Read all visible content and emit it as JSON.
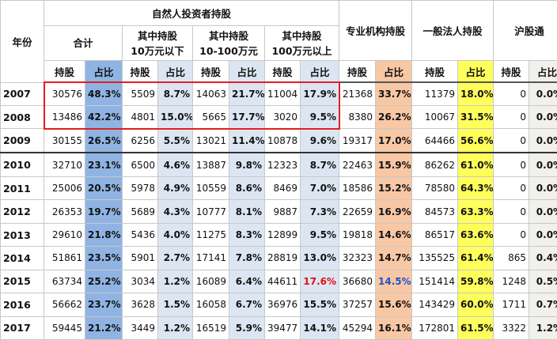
{
  "table": {
    "header": {
      "year": "年份",
      "groups": [
        "自然人投资者持股",
        "专业机构持股",
        "一般法人持股",
        "沪股通"
      ],
      "subgroups": [
        "合计",
        "其中持股\n10万元以下",
        "其中持股\n10-100万元",
        "其中持股\n100万元以上"
      ],
      "columns": [
        "持股",
        "占比",
        "持股",
        "占比",
        "持股",
        "占比",
        "持股",
        "占比",
        "持股",
        "占比",
        "持股",
        "占比",
        "持股",
        "占比"
      ]
    },
    "rows": [
      {
        "year": "2007",
        "cells": [
          "30576",
          "48.3%",
          "5509",
          "8.7%",
          "14063",
          "21.7%",
          "11004",
          "17.9%",
          "21368",
          "33.7%",
          "11379",
          "18.0%",
          "0",
          "0.0%"
        ]
      },
      {
        "year": "2008",
        "cells": [
          "13486",
          "42.2%",
          "4801",
          "15.0%",
          "5665",
          "17.7%",
          "3020",
          "9.5%",
          "8380",
          "26.2%",
          "10067",
          "31.5%",
          "0",
          "0.0%"
        ]
      },
      {
        "year": "2009",
        "cells": [
          "30155",
          "26.5%",
          "6256",
          "5.5%",
          "13021",
          "11.4%",
          "10878",
          "9.6%",
          "19317",
          "17.0%",
          "64466",
          "56.6%",
          "0",
          "0.0%"
        ]
      },
      {
        "year": "2010",
        "cells": [
          "32710",
          "23.1%",
          "6500",
          "4.6%",
          "13887",
          "9.8%",
          "12323",
          "8.7%",
          "22463",
          "15.9%",
          "86262",
          "61.0%",
          "0",
          "0.0%"
        ]
      },
      {
        "year": "2011",
        "cells": [
          "25006",
          "20.5%",
          "5978",
          "4.9%",
          "10559",
          "8.6%",
          "8469",
          "7.0%",
          "18586",
          "15.2%",
          "78580",
          "64.3%",
          "0",
          "0.0%"
        ]
      },
      {
        "year": "2012",
        "cells": [
          "26353",
          "19.7%",
          "5689",
          "4.3%",
          "10777",
          "8.1%",
          "9887",
          "7.3%",
          "22659",
          "16.9%",
          "84573",
          "63.3%",
          "0",
          "0.0%"
        ]
      },
      {
        "year": "2013",
        "cells": [
          "29610",
          "21.8%",
          "5436",
          "4.0%",
          "11275",
          "8.3%",
          "12899",
          "9.5%",
          "19818",
          "14.6%",
          "86517",
          "63.6%",
          "0",
          "0.0%"
        ]
      },
      {
        "year": "2014",
        "cells": [
          "51861",
          "23.5%",
          "5901",
          "2.7%",
          "17141",
          "7.8%",
          "28819",
          "13.0%",
          "32323",
          "14.7%",
          "135525",
          "61.4%",
          "865",
          "0.4%"
        ]
      },
      {
        "year": "2015",
        "cells": [
          "63734",
          "25.2%",
          "3034",
          "1.2%",
          "16089",
          "6.4%",
          "44611",
          "17.6%",
          "36680",
          "14.5%",
          "151414",
          "59.8%",
          "1248",
          "0.5%"
        ]
      },
      {
        "year": "2016",
        "cells": [
          "56662",
          "23.7%",
          "3628",
          "1.5%",
          "16058",
          "6.7%",
          "36976",
          "15.5%",
          "37257",
          "15.6%",
          "143429",
          "60.0%",
          "1711",
          "0.7%"
        ]
      },
      {
        "year": "2017",
        "cells": [
          "59445",
          "21.2%",
          "3449",
          "1.2%",
          "16519",
          "5.9%",
          "39477",
          "14.1%",
          "45294",
          "16.1%",
          "172801",
          "61.5%",
          "3322",
          "1.2%"
        ]
      }
    ]
  }
}
